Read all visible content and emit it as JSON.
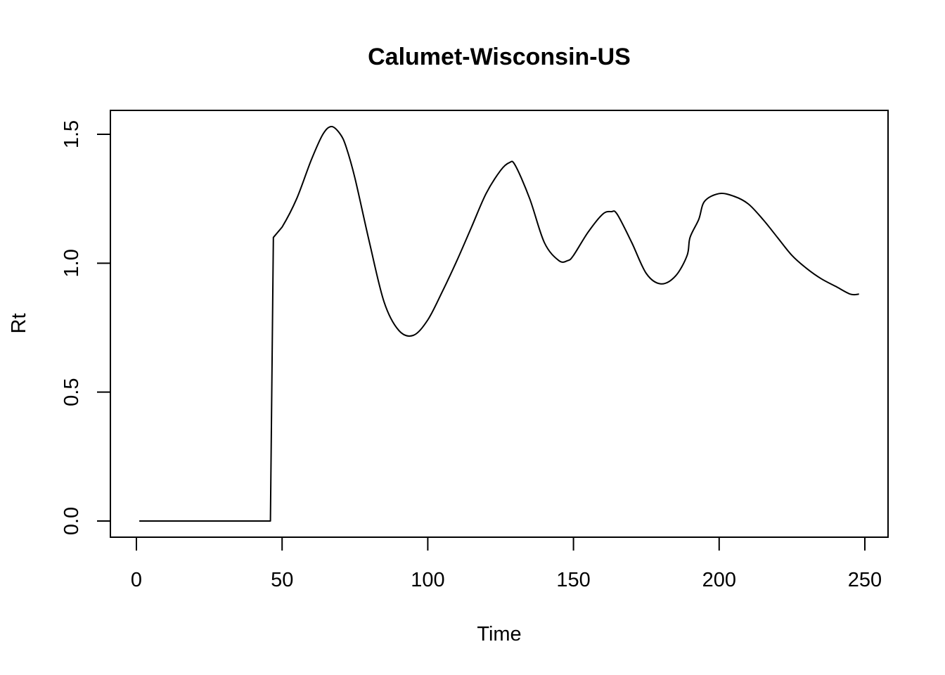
{
  "chart_data": {
    "type": "line",
    "title": "Calumet-Wisconsin-US",
    "xlabel": "Time",
    "ylabel": "Rt",
    "xlim": [
      0,
      250
    ],
    "ylim": [
      0,
      1.5
    ],
    "x_ticks": [
      0,
      50,
      100,
      150,
      200,
      250
    ],
    "y_ticks": [
      0.0,
      0.5,
      1.0,
      1.5
    ],
    "x_tick_labels": [
      "0",
      "50",
      "100",
      "150",
      "200",
      "250"
    ],
    "y_tick_labels": [
      "0.0",
      "0.5",
      "1.0",
      "1.5"
    ],
    "grid": false,
    "legend": "none",
    "line_color": "#000000",
    "series": [
      {
        "x": [
          1,
          46,
          47,
          50,
          55,
          60,
          64,
          67,
          70,
          72,
          75,
          80,
          85,
          90,
          95,
          100,
          105,
          110,
          115,
          120,
          125,
          128,
          130,
          135,
          140,
          145,
          148,
          150,
          155,
          160,
          163,
          165,
          170,
          175,
          180,
          185,
          189,
          190,
          193,
          195,
          200,
          205,
          210,
          215,
          220,
          225,
          230,
          235,
          240,
          245,
          248
        ],
        "y": [
          0,
          0,
          1.1,
          1.14,
          1.25,
          1.4,
          1.5,
          1.53,
          1.5,
          1.45,
          1.33,
          1.08,
          0.85,
          0.74,
          0.72,
          0.78,
          0.89,
          1.01,
          1.14,
          1.27,
          1.36,
          1.39,
          1.38,
          1.25,
          1.08,
          1.01,
          1.01,
          1.03,
          1.12,
          1.19,
          1.2,
          1.19,
          1.08,
          0.96,
          0.92,
          0.95,
          1.03,
          1.1,
          1.17,
          1.24,
          1.27,
          1.26,
          1.23,
          1.17,
          1.1,
          1.03,
          0.98,
          0.94,
          0.91,
          0.88,
          0.88
        ]
      }
    ]
  }
}
